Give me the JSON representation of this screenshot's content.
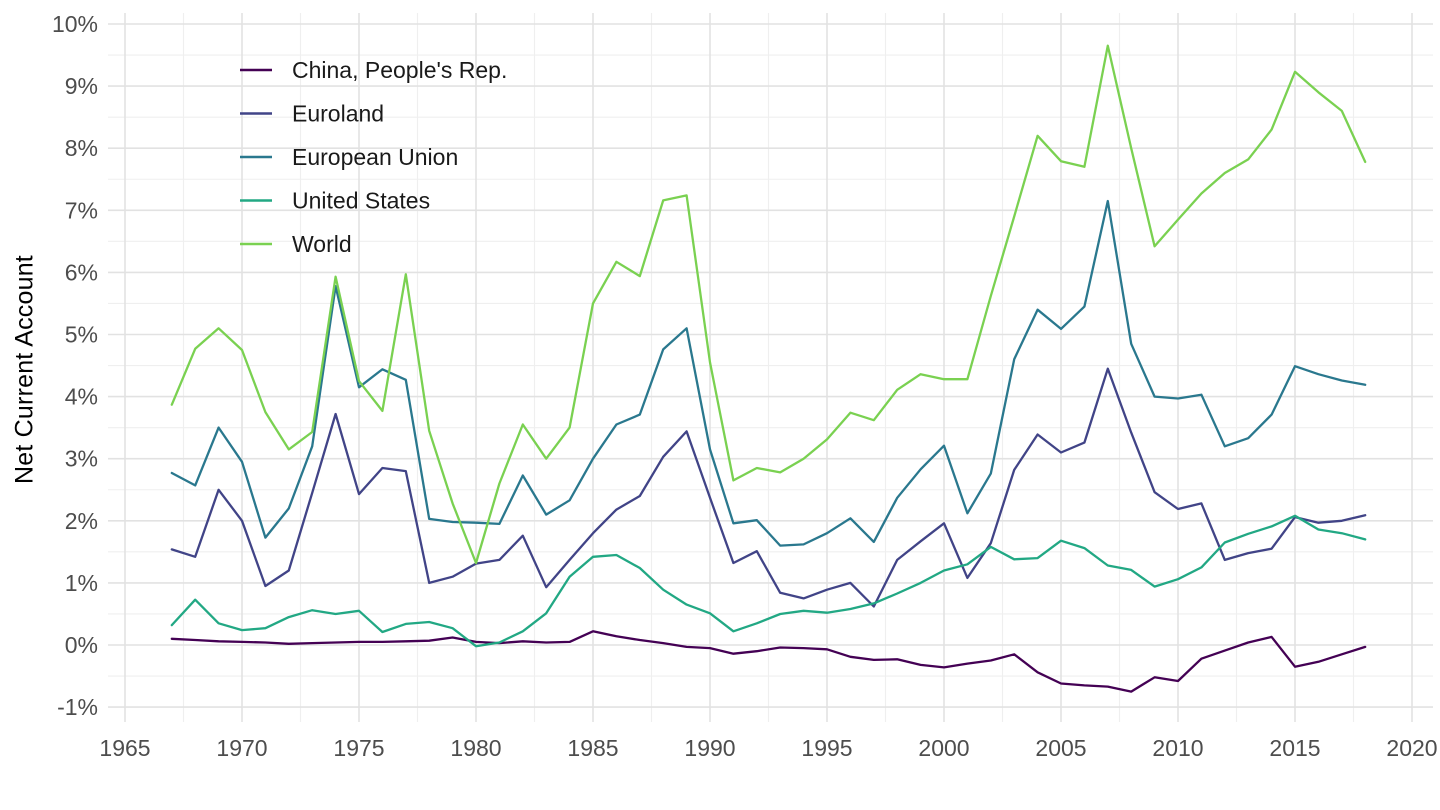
{
  "page": {
    "background": "#ffffff"
  },
  "y_axis": {
    "title": "Net Current Account",
    "tick_values": [
      10,
      9,
      8,
      7,
      6,
      5,
      4,
      3,
      2,
      1,
      0,
      -1
    ],
    "tick_labels": [
      "10%",
      "9%",
      "8%",
      "7%",
      "6%",
      "5%",
      "4%",
      "3%",
      "2%",
      "1%",
      "0%",
      "-1%"
    ],
    "tick_color": "#4d4d4d"
  },
  "x_axis": {
    "tick_values": [
      1965,
      1970,
      1975,
      1980,
      1985,
      1990,
      1995,
      2000,
      2005,
      2010,
      2015,
      2020
    ],
    "tick_labels": [
      "1965",
      "1970",
      "1975",
      "1980",
      "1985",
      "1990",
      "1995",
      "2000",
      "2005",
      "2010",
      "2015",
      "2020"
    ],
    "tick_color": "#4d4d4d"
  },
  "legend": {
    "position": "inside-top-left",
    "items": [
      {
        "label": "China, People's Rep.",
        "color": "#440154"
      },
      {
        "label": "Euroland",
        "color": "#414487"
      },
      {
        "label": "European Union",
        "color": "#2a788e"
      },
      {
        "label": "United States",
        "color": "#22a884"
      },
      {
        "label": "World",
        "color": "#7ad151"
      }
    ]
  },
  "chart_data": {
    "type": "line",
    "title": "",
    "xlabel": "",
    "ylabel": "Net Current Account",
    "xlim": [
      1965,
      2020
    ],
    "ylim": [
      -1,
      10
    ],
    "grid": {
      "major": true,
      "minor": true,
      "major_color": "#e2e2e2",
      "minor_color": "#efefef"
    },
    "x": [
      1967,
      1968,
      1969,
      1970,
      1971,
      1972,
      1973,
      1974,
      1975,
      1976,
      1977,
      1978,
      1979,
      1980,
      1981,
      1982,
      1983,
      1984,
      1985,
      1986,
      1987,
      1988,
      1989,
      1990,
      1991,
      1992,
      1993,
      1994,
      1995,
      1996,
      1997,
      1998,
      1999,
      2000,
      2001,
      2002,
      2003,
      2004,
      2005,
      2006,
      2007,
      2008,
      2009,
      2010,
      2011,
      2012,
      2013,
      2014,
      2015,
      2016,
      2017,
      2018
    ],
    "series": [
      {
        "name": "China, People's Rep.",
        "color": "#440154",
        "values": [
          0.1,
          0.08,
          0.06,
          0.05,
          0.04,
          0.02,
          0.03,
          0.04,
          0.05,
          0.05,
          0.06,
          0.07,
          0.12,
          0.05,
          0.03,
          0.06,
          0.04,
          0.05,
          0.22,
          0.14,
          0.08,
          0.03,
          -0.03,
          -0.05,
          -0.14,
          -0.1,
          -0.04,
          -0.05,
          -0.07,
          -0.19,
          -0.24,
          -0.23,
          -0.32,
          -0.36,
          -0.3,
          -0.25,
          -0.15,
          -0.44,
          -0.62,
          -0.65,
          -0.67,
          -0.75,
          -0.52,
          -0.58,
          -0.22,
          -0.09,
          0.04,
          0.13,
          -0.35,
          -0.27,
          -0.15,
          -0.03
        ]
      },
      {
        "name": "Euroland",
        "color": "#414487",
        "values": [
          1.54,
          1.42,
          2.5,
          2.0,
          0.95,
          1.2,
          2.45,
          3.72,
          2.43,
          2.85,
          2.8,
          1.0,
          1.1,
          1.31,
          1.37,
          1.76,
          0.93,
          1.37,
          1.8,
          2.18,
          2.4,
          3.03,
          3.44,
          2.37,
          1.32,
          1.51,
          0.84,
          0.75,
          0.89,
          1.0,
          0.62,
          1.37,
          1.67,
          1.96,
          1.08,
          1.64,
          2.82,
          3.39,
          3.1,
          3.26,
          4.45,
          3.42,
          2.46,
          2.19,
          2.28,
          1.37,
          1.48,
          1.55,
          2.06,
          1.97,
          2.0,
          2.09
        ]
      },
      {
        "name": "European Union",
        "color": "#2a788e",
        "values": [
          2.77,
          2.57,
          3.5,
          2.95,
          1.73,
          2.2,
          3.2,
          5.78,
          4.15,
          4.44,
          4.27,
          2.03,
          1.98,
          1.97,
          1.95,
          2.73,
          2.1,
          2.33,
          3.0,
          3.55,
          3.71,
          4.76,
          5.1,
          3.15,
          1.96,
          2.01,
          1.6,
          1.62,
          1.8,
          2.04,
          1.66,
          2.37,
          2.83,
          3.21,
          2.12,
          2.76,
          4.6,
          5.4,
          5.09,
          5.45,
          7.15,
          4.85,
          4.0,
          3.97,
          4.03,
          3.2,
          3.33,
          3.71,
          4.49,
          4.36,
          4.26,
          4.19
        ]
      },
      {
        "name": "United States",
        "color": "#22a884",
        "values": [
          0.32,
          0.73,
          0.35,
          0.24,
          0.27,
          0.45,
          0.56,
          0.5,
          0.55,
          0.21,
          0.34,
          0.37,
          0.27,
          -0.02,
          0.04,
          0.22,
          0.51,
          1.1,
          1.42,
          1.45,
          1.24,
          0.89,
          0.65,
          0.51,
          0.22,
          0.35,
          0.5,
          0.55,
          0.52,
          0.58,
          0.67,
          0.83,
          1.0,
          1.2,
          1.3,
          1.58,
          1.38,
          1.4,
          1.68,
          1.56,
          1.28,
          1.21,
          0.94,
          1.06,
          1.25,
          1.65,
          1.79,
          1.91,
          2.08,
          1.86,
          1.8,
          1.7
        ]
      },
      {
        "name": "World",
        "color": "#7ad151",
        "values": [
          3.87,
          4.77,
          5.1,
          4.75,
          3.75,
          3.15,
          3.43,
          5.93,
          4.25,
          3.77,
          5.97,
          3.45,
          2.28,
          1.32,
          2.6,
          3.55,
          3.0,
          3.5,
          5.5,
          6.17,
          5.94,
          7.16,
          7.24,
          4.55,
          2.65,
          2.85,
          2.78,
          3.0,
          3.31,
          3.74,
          3.62,
          4.11,
          4.36,
          4.28,
          4.28,
          5.62,
          6.9,
          8.2,
          7.79,
          7.7,
          9.65,
          8.0,
          6.42,
          6.85,
          7.27,
          7.6,
          7.82,
          8.3,
          9.23,
          8.9,
          8.6,
          7.78
        ]
      }
    ],
    "legend_entries": [
      "China, People's Rep.",
      "Euroland",
      "European Union",
      "United States",
      "World"
    ]
  }
}
